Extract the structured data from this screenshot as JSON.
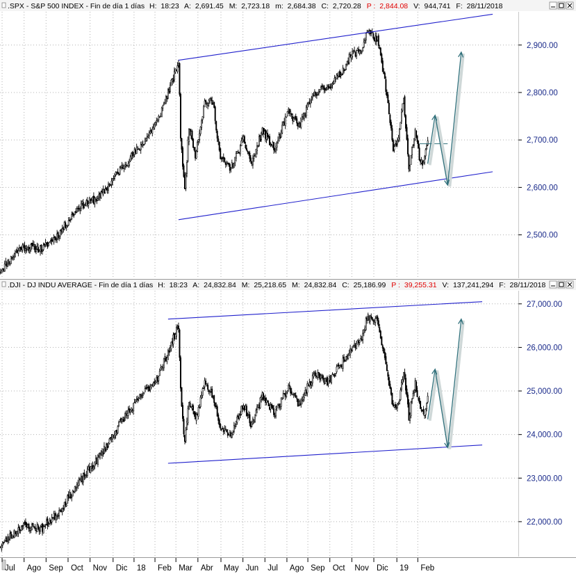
{
  "panels": [
    {
      "header": {
        "prefix": ".SPX - S&P 500 INDEX - Fin de día 1 días",
        "h_label": "H:",
        "h_value": "18:23",
        "a_label": "A:",
        "a_value": "2,691.45",
        "m_label": "M:",
        "m_value": "2,723.18",
        "l_label": "m:",
        "l_value": "2,684.38",
        "c_label": "C:",
        "c_value": "2,720.28",
        "p_label": "P :",
        "p_value": "2,844.08",
        "v_label": "V:",
        "v_value": "944,741",
        "f_label": "F:",
        "f_value": "28/11/2018"
      }
    },
    {
      "header": {
        "prefix": ".DJI - DJ INDU AVERAGE - Fin de día 1 días",
        "h_label": "H:",
        "h_value": "18:23",
        "a_label": "A:",
        "a_value": "24,832.84",
        "m_label": "M:",
        "m_value": "25,218.65",
        "l_label": "M:",
        "l_value": "24,832.84",
        "c_label": "C:",
        "c_value": "25,186.99",
        "p_label": "P :",
        "p_value": "39,255.31",
        "v_label": "V:",
        "v_value": "137,241,294",
        "f_label": "F:",
        "f_value": "28/11/2018"
      }
    }
  ],
  "window_buttons": [
    "minimize-icon",
    "maximize-icon",
    "close-icon"
  ],
  "colors": {
    "candle": "#000000",
    "channel": "#1f1fcc",
    "projection": "#2f6f7a",
    "header_red": "#e00000",
    "price_text": "#1a2a8a"
  },
  "chart_data": [
    {
      "type": "candlestick",
      "title": ".SPX - S&P 500 INDEX",
      "ylim": [
        2410,
        2970
      ],
      "y_ticks": [
        {
          "value": 2500,
          "label": "2,500.00"
        },
        {
          "value": 2600,
          "label": "2,600.00"
        },
        {
          "value": 2700,
          "label": "2,700.00"
        },
        {
          "value": 2800,
          "label": "2,800.00"
        },
        {
          "value": 2900,
          "label": "2,900.00"
        }
      ],
      "x_ticks": [
        "Jul",
        "Ago",
        "Sep",
        "Oct",
        "Nov",
        "Dic",
        "18",
        "Feb",
        "Mar",
        "Abr",
        "May",
        "Jun",
        "Jul",
        "Ago",
        "Sep",
        "Oct",
        "Nov",
        "Dic",
        "19",
        "Feb"
      ],
      "anchors": [
        [
          0,
          2425
        ],
        [
          20,
          2475
        ],
        [
          40,
          2470
        ],
        [
          55,
          2500
        ],
        [
          75,
          2560
        ],
        [
          95,
          2580
        ],
        [
          115,
          2640
        ],
        [
          135,
          2690
        ],
        [
          150,
          2740
        ],
        [
          165,
          2830
        ],
        [
          170,
          2865
        ],
        [
          172,
          2710
        ],
        [
          176,
          2590
        ],
        [
          180,
          2730
        ],
        [
          186,
          2670
        ],
        [
          195,
          2780
        ],
        [
          203,
          2780
        ],
        [
          210,
          2660
        ],
        [
          220,
          2640
        ],
        [
          232,
          2700
        ],
        [
          240,
          2650
        ],
        [
          250,
          2720
        ],
        [
          262,
          2680
        ],
        [
          275,
          2760
        ],
        [
          285,
          2730
        ],
        [
          300,
          2800
        ],
        [
          312,
          2810
        ],
        [
          325,
          2840
        ],
        [
          335,
          2880
        ],
        [
          345,
          2890
        ],
        [
          350,
          2930
        ],
        [
          360,
          2910
        ],
        [
          368,
          2810
        ],
        [
          375,
          2680
        ],
        [
          380,
          2700
        ],
        [
          385,
          2790
        ],
        [
          390,
          2640
        ],
        [
          396,
          2720
        ],
        [
          400,
          2660
        ],
        [
          404,
          2645
        ],
        [
          408,
          2700
        ]
      ],
      "channel": {
        "upper": [
          [
            170,
            2868
          ],
          [
            470,
            2965
          ]
        ],
        "lower": [
          [
            170,
            2532
          ],
          [
            470,
            2633
          ]
        ],
        "horizontal": [
          [
            400,
            2692
          ],
          [
            427,
            2692
          ]
        ]
      },
      "projection": [
        [
          408,
          2650
        ],
        [
          415,
          2752
        ],
        [
          427,
          2605
        ],
        [
          440,
          2885
        ]
      ]
    },
    {
      "type": "candlestick",
      "title": ".DJI - DJ INDU AVERAGE",
      "ylim": [
        21200,
        27300
      ],
      "y_ticks": [
        {
          "value": 22000,
          "label": "22,000.00"
        },
        {
          "value": 23000,
          "label": "23,000.00"
        },
        {
          "value": 24000,
          "label": "24,000.00"
        },
        {
          "value": 25000,
          "label": "25,000.00"
        },
        {
          "value": 26000,
          "label": "26,000.00"
        },
        {
          "value": 27000,
          "label": "27,000.00"
        }
      ],
      "x_ticks": [
        "Jul",
        "Ago",
        "Sep",
        "Oct",
        "Nov",
        "Dic",
        "18",
        "Feb",
        "Mar",
        "Abr",
        "May",
        "Jun",
        "Jul",
        "Ago",
        "Sep",
        "Oct",
        "Nov",
        "Dic",
        "19",
        "Feb"
      ],
      "anchors": [
        [
          0,
          21450
        ],
        [
          20,
          21900
        ],
        [
          40,
          21850
        ],
        [
          55,
          22200
        ],
        [
          75,
          22900
        ],
        [
          95,
          23500
        ],
        [
          115,
          24300
        ],
        [
          135,
          24900
        ],
        [
          150,
          25300
        ],
        [
          165,
          26200
        ],
        [
          170,
          26500
        ],
        [
          172,
          25000
        ],
        [
          176,
          23800
        ],
        [
          180,
          24800
        ],
        [
          186,
          24300
        ],
        [
          195,
          25200
        ],
        [
          203,
          24900
        ],
        [
          210,
          24200
        ],
        [
          220,
          24000
        ],
        [
          232,
          24700
        ],
        [
          240,
          24200
        ],
        [
          250,
          24900
        ],
        [
          262,
          24500
        ],
        [
          275,
          25100
        ],
        [
          285,
          24700
        ],
        [
          300,
          25400
        ],
        [
          312,
          25200
        ],
        [
          325,
          25600
        ],
        [
          335,
          26000
        ],
        [
          345,
          26200
        ],
        [
          350,
          26700
        ],
        [
          360,
          26600
        ],
        [
          368,
          25600
        ],
        [
          375,
          24600
        ],
        [
          380,
          24700
        ],
        [
          385,
          25500
        ],
        [
          390,
          24400
        ],
        [
          396,
          25200
        ],
        [
          400,
          24700
        ],
        [
          404,
          24400
        ],
        [
          408,
          24900
        ]
      ],
      "channel": {
        "upper": [
          [
            160,
            26650
          ],
          [
            460,
            27050
          ]
        ],
        "lower": [
          [
            160,
            23340
          ],
          [
            460,
            23760
          ]
        ],
        "horizontal": null
      },
      "projection": [
        [
          408,
          24350
        ],
        [
          415,
          25500
        ],
        [
          427,
          23700
        ],
        [
          440,
          26650
        ]
      ]
    }
  ]
}
